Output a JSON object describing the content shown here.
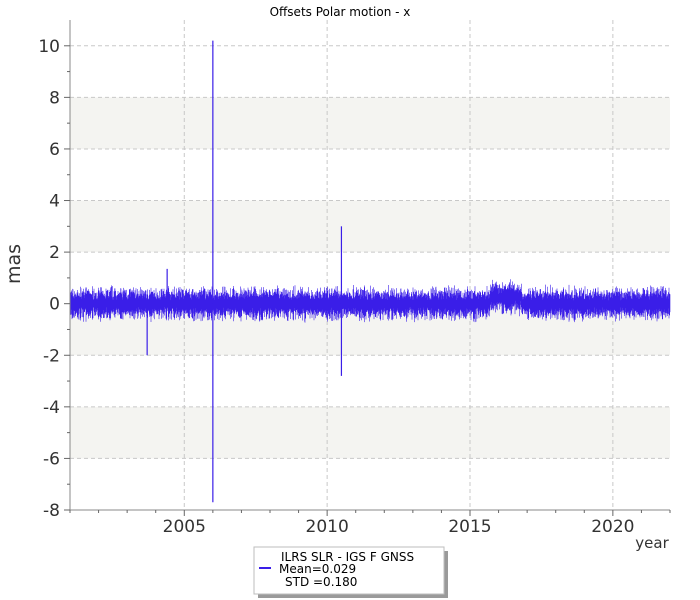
{
  "chart_data": {
    "type": "line",
    "title": "Offsets Polar motion - x",
    "ylabel": "mas",
    "xlabel": "year",
    "xlim": [
      2001.0,
      2022.0
    ],
    "ylim": [
      -8,
      11
    ],
    "y_ticks": [
      -8,
      -6,
      -4,
      -2,
      0,
      2,
      4,
      6,
      8,
      10
    ],
    "x_ticks": [
      2005,
      2010,
      2015,
      2020
    ],
    "grid": true,
    "band_color": "#f4f4f1",
    "line_color": "#3a1ee8",
    "legend_placement": "bottom-center",
    "series": [
      {
        "name": "ILRS SLR - IGS F GNSS",
        "mean_label": "Mean=0.029",
        "std_label": "STD =0.180",
        "spikes": [
          {
            "x": 2003.7,
            "y": -2.0
          },
          {
            "x": 2004.4,
            "y": 1.35
          },
          {
            "x": 2006.0,
            "y": 10.2
          },
          {
            "x": 2006.0,
            "y": -7.7
          },
          {
            "x": 2010.5,
            "y": 3.0
          },
          {
            "x": 2010.5,
            "y": -2.8
          }
        ]
      }
    ]
  }
}
